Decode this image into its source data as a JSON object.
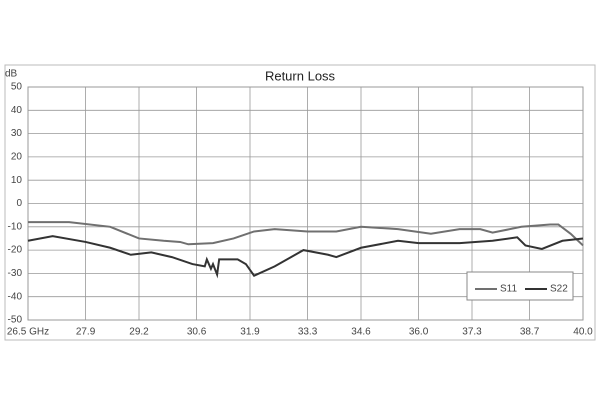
{
  "chart_data": {
    "type": "line",
    "title": "Return Loss",
    "y_label": "dB",
    "xlim": [
      26.5,
      40.0
    ],
    "xticks": [
      {
        "value": 26.5,
        "label": "26.5  GHz"
      },
      27.9,
      29.2,
      30.6,
      31.9,
      33.3,
      34.6,
      {
        "value": 36.0,
        "label": "36.0"
      },
      37.3,
      38.7,
      {
        "value": 40.0,
        "label": "40.0"
      }
    ],
    "ylim": [
      -50,
      50
    ],
    "yticks": [
      -50,
      -40,
      -30,
      -20,
      -10,
      0,
      10,
      20,
      30,
      40,
      50
    ],
    "grid": true,
    "legend": "lower right",
    "series": [
      {
        "name": "S11",
        "color": "#707070",
        "x": [
          26.5,
          27.5,
          28.5,
          29.2,
          29.8,
          30.2,
          30.4,
          31.0,
          31.5,
          32.0,
          32.5,
          33.3,
          34.0,
          34.6,
          35.5,
          36.3,
          37.0,
          37.5,
          37.8,
          38.5,
          39.2,
          39.4,
          39.7,
          40.0
        ],
        "values": [
          -8,
          -8,
          -10,
          -15,
          -16,
          -16.5,
          -17.5,
          -17,
          -15,
          -12,
          -11,
          -12,
          -12,
          -10,
          -11,
          -13,
          -11,
          -11,
          -12.5,
          -10,
          -9,
          -9,
          -13,
          -18
        ]
      },
      {
        "name": "S22",
        "color": "#333333",
        "x": [
          26.5,
          27.1,
          27.9,
          28.5,
          29.0,
          29.5,
          30.0,
          30.5,
          30.8,
          30.85,
          30.95,
          31.0,
          31.1,
          31.15,
          31.6,
          31.8,
          32.0,
          32.5,
          33.2,
          33.8,
          34.0,
          34.6,
          35.5,
          36.0,
          37.0,
          37.8,
          38.4,
          38.6,
          39.0,
          39.5,
          40.0
        ],
        "values": [
          -16,
          -14,
          -16.5,
          -19,
          -22,
          -21,
          -23,
          -26,
          -27,
          -24,
          -28,
          -26,
          -30.5,
          -24,
          -24,
          -26,
          -31,
          -27,
          -20,
          -22,
          -23,
          -19,
          -16,
          -17,
          -17,
          -16,
          -14.5,
          -18,
          -19.5,
          -16,
          -15
        ]
      }
    ]
  }
}
